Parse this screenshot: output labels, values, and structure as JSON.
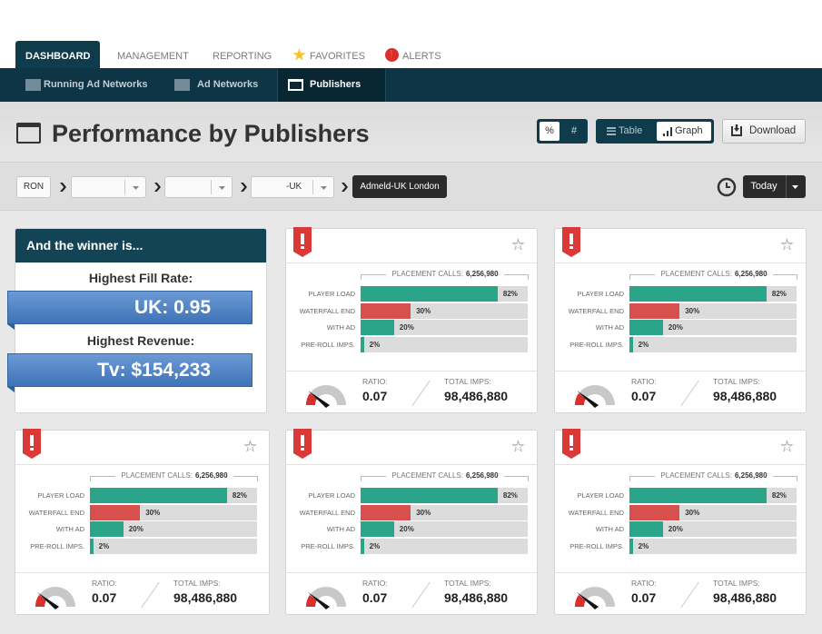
{
  "tabs": [
    "DASHBOARD",
    "MANAGEMENT",
    "REPORTING",
    "FAVORITES",
    "ALERTS"
  ],
  "subnav": [
    "Running Ad Networks",
    "Ad Networks",
    "Publishers"
  ],
  "page_title": "Performance by Publishers",
  "unit_toggle": [
    "%",
    "#"
  ],
  "view_toggle": [
    "Table",
    "Graph"
  ],
  "download": "Download",
  "breadcrumb": {
    "root": "RON",
    "third": "-UK",
    "current": "Admeld-UK London"
  },
  "date_filter": "Today",
  "winner": {
    "title": "And the winner is...",
    "items": [
      {
        "label": "Highest Fill Rate:",
        "value": "UK: 0.95"
      },
      {
        "label": "Highest Revenue:",
        "value": "Tv: $154,233"
      }
    ]
  },
  "bar_colors": [
    "#2aa58a",
    "#d8504e",
    "#2aa58a",
    "#2aa58a"
  ],
  "cards": [
    {
      "placement_calls_label": "PLACEMENT CALLS:",
      "placement_calls": "6,256,980",
      "bars": {
        "labels": [
          "PLAYER LOAD",
          "WATERFALL END",
          "WITH AD",
          "PRE-ROLL IMPS."
        ],
        "values": [
          82,
          30,
          20,
          2
        ],
        "value_labels": [
          "82%",
          "30%",
          "20%",
          "2%"
        ]
      },
      "ratio_label": "RATIO:",
      "ratio": 0.07,
      "total_imps_label": "TOTAL IMPS:",
      "total_imps": "98,486,880"
    },
    {
      "placement_calls_label": "PLACEMENT CALLS:",
      "placement_calls": "6,256,980",
      "bars": {
        "labels": [
          "PLAYER LOAD",
          "WATERFALL END",
          "WITH AD",
          "PRE-ROLL IMPS."
        ],
        "values": [
          82,
          30,
          20,
          2
        ],
        "value_labels": [
          "82%",
          "30%",
          "20%",
          "2%"
        ]
      },
      "ratio_label": "RATIO:",
      "ratio": 0.07,
      "total_imps_label": "TOTAL IMPS:",
      "total_imps": "98,486,880"
    },
    {
      "placement_calls_label": "PLACEMENT CALLS:",
      "placement_calls": "6,256,980",
      "bars": {
        "labels": [
          "PLAYER LOAD",
          "WATERFALL END",
          "WITH AD",
          "PRE-ROLL IMPS."
        ],
        "values": [
          82,
          30,
          20,
          2
        ],
        "value_labels": [
          "82%",
          "30%",
          "20%",
          "2%"
        ]
      },
      "ratio_label": "RATIO:",
      "ratio": 0.07,
      "total_imps_label": "TOTAL IMPS:",
      "total_imps": "98,486,880"
    },
    {
      "placement_calls_label": "PLACEMENT CALLS:",
      "placement_calls": "6,256,980",
      "bars": {
        "labels": [
          "PLAYER LOAD",
          "WATERFALL END",
          "WITH AD",
          "PRE-ROLL IMPS."
        ],
        "values": [
          82,
          30,
          20,
          2
        ],
        "value_labels": [
          "82%",
          "30%",
          "20%",
          "2%"
        ]
      },
      "ratio_label": "RATIO:",
      "ratio": 0.07,
      "total_imps_label": "TOTAL IMPS:",
      "total_imps": "98,486,880"
    },
    {
      "placement_calls_label": "PLACEMENT CALLS:",
      "placement_calls": "6,256,980",
      "bars": {
        "labels": [
          "PLAYER LOAD",
          "WATERFALL END",
          "WITH AD",
          "PRE-ROLL IMPS."
        ],
        "values": [
          82,
          30,
          20,
          2
        ],
        "value_labels": [
          "82%",
          "30%",
          "20%",
          "2%"
        ]
      },
      "ratio_label": "RATIO:",
      "ratio": 0.07,
      "total_imps_label": "TOTAL IMPS:",
      "total_imps": "98,486,880"
    }
  ]
}
